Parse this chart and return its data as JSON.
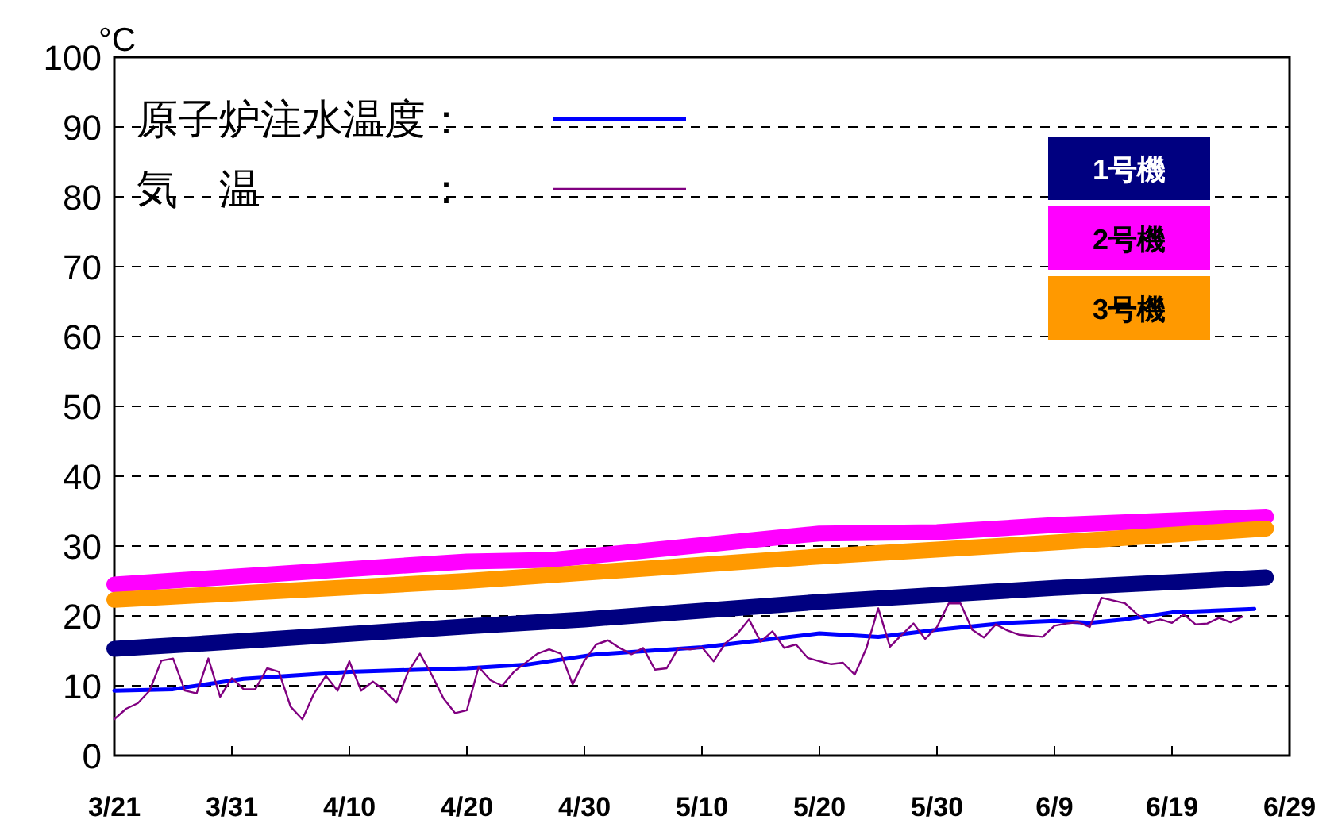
{
  "chart_data": {
    "type": "line",
    "ylabel": "°C",
    "xlim": [
      "--03-21",
      "--06-29"
    ],
    "xticks": [
      {
        "value": "--03-21",
        "label": "3/21"
      },
      {
        "value": "--03-31",
        "label": "3/31"
      },
      {
        "value": "--04-10",
        "label": "4/10"
      },
      {
        "value": "--04-20",
        "label": "4/20"
      },
      {
        "value": "--04-30",
        "label": "4/30"
      },
      {
        "value": "--05-10",
        "label": "5/10"
      },
      {
        "value": "--05-20",
        "label": "5/20"
      },
      {
        "value": "--05-30",
        "label": "5/30"
      },
      {
        "value": "--06-09",
        "label": "6/9"
      },
      {
        "value": "--06-19",
        "label": "6/19"
      },
      {
        "value": "--06-29",
        "label": "6/29"
      }
    ],
    "ylim": [
      0,
      100
    ],
    "yticks": [
      0,
      10,
      20,
      30,
      40,
      50,
      60,
      70,
      80,
      90,
      100
    ],
    "grid": "y",
    "legend": "top left",
    "series": [
      {
        "name": "原子炉注水温度：",
        "color": "#0000ff",
        "x": [
          "--03-21",
          "--03-26",
          "--04-01",
          "--04-10",
          "--04-20",
          "--04-25",
          "--05-01",
          "--05-10",
          "--05-20",
          "--05-25",
          "--05-30",
          "--06-05",
          "--06-09",
          "--06-12",
          "--06-15",
          "--06-19",
          "--06-26"
        ],
        "values": [
          9.3,
          9.5,
          11,
          12,
          12.5,
          13,
          14.5,
          15.5,
          17.5,
          17,
          18,
          19,
          19.3,
          19,
          19.5,
          20.5,
          21
        ]
      },
      {
        "name": "気　温　　　　：",
        "color": "#800080",
        "x": [
          "--03-21",
          "--03-22",
          "--03-23",
          "--03-24",
          "--03-25",
          "--03-26",
          "--03-27",
          "--03-28",
          "--03-29",
          "--03-30",
          "--03-31",
          "--04-01",
          "--04-02",
          "--04-03",
          "--04-04",
          "--04-05",
          "--04-06",
          "--04-07",
          "--04-08",
          "--04-09",
          "--04-10",
          "--04-11",
          "--04-12",
          "--04-13",
          "--04-14",
          "--04-15",
          "--04-16",
          "--04-17",
          "--04-18",
          "--04-19",
          "--04-20",
          "--04-21",
          "--04-22",
          "--04-23",
          "--04-24",
          "--04-26",
          "--04-27",
          "--04-28",
          "--04-29",
          "--04-30",
          "--05-01",
          "--05-02",
          "--05-03",
          "--05-04",
          "--05-05",
          "--05-06",
          "--05-07",
          "--05-08",
          "--05-09",
          "--05-10",
          "--05-11",
          "--05-12",
          "--05-13",
          "--05-14",
          "--05-15",
          "--05-16",
          "--05-17",
          "--05-18",
          "--05-19",
          "--05-20",
          "--05-21",
          "--05-22",
          "--05-23",
          "--05-24",
          "--05-25",
          "--05-26",
          "--05-27",
          "--05-28",
          "--05-29",
          "--05-30",
          "--05-31",
          "--06-01",
          "--06-02",
          "--06-03",
          "--06-04",
          "--06-05",
          "--06-06",
          "--06-08",
          "--06-09",
          "--06-10",
          "--06-11",
          "--06-12",
          "--06-13",
          "--06-14",
          "--06-15",
          "--06-16",
          "--06-17",
          "--06-18",
          "--06-19",
          "--06-20",
          "--06-21",
          "--06-22",
          "--06-23",
          "--06-24",
          "--06-25"
        ],
        "values": [
          5.2,
          6.7,
          7.5,
          9.3,
          13.6,
          13.9,
          9.3,
          8.9,
          13.9,
          8.4,
          11.1,
          9.5,
          9.5,
          12.5,
          12,
          7,
          5.2,
          8.9,
          11.4,
          9.3,
          13.5,
          9.3,
          10.6,
          9.3,
          7.6,
          12,
          14.6,
          11.6,
          8.2,
          6.1,
          6.5,
          12.7,
          10.8,
          10,
          12,
          14.6,
          15.2,
          14.6,
          10.2,
          13.6,
          15.9,
          16.5,
          15.4,
          14.5,
          15.4,
          12.3,
          12.5,
          15.4,
          15.2,
          15.5,
          13.5,
          16.1,
          17.4,
          19.5,
          16.3,
          17.8,
          15.4,
          15.9,
          14,
          13.5,
          13.1,
          13.3,
          11.6,
          15.4,
          21.1,
          15.6,
          17.3,
          18.9,
          16.7,
          18.4,
          21.8,
          21.8,
          18,
          16.9,
          18.8,
          17.9,
          17.3,
          17,
          18.6,
          18.9,
          19.1,
          18.4,
          22.6,
          22.2,
          21.8,
          20.3,
          19,
          19.5,
          19,
          20.2,
          18.8,
          18.9,
          19.7,
          19.1,
          19.9
        ]
      },
      {
        "name": "1号機",
        "color": "#000080",
        "x": [
          "--03-21",
          "--03-31",
          "--04-20",
          "--04-30",
          "--05-20",
          "--06-09",
          "--06-27"
        ],
        "values": [
          15.3,
          16.3,
          18.5,
          19.5,
          22,
          24,
          25.5
        ]
      },
      {
        "name": "2号機",
        "color": "#ff00ff",
        "x": [
          "--03-21",
          "--04-20",
          "--04-27",
          "--05-20",
          "--05-30",
          "--06-09",
          "--06-27"
        ],
        "values": [
          24.5,
          27.8,
          28,
          31.8,
          32,
          33,
          34.2
        ]
      },
      {
        "name": "3号機",
        "color": "#ff9900",
        "x": [
          "--03-21",
          "--04-20",
          "--05-20",
          "--06-09",
          "--06-27"
        ],
        "values": [
          22.3,
          25,
          28.5,
          30.5,
          32.5
        ]
      }
    ]
  }
}
